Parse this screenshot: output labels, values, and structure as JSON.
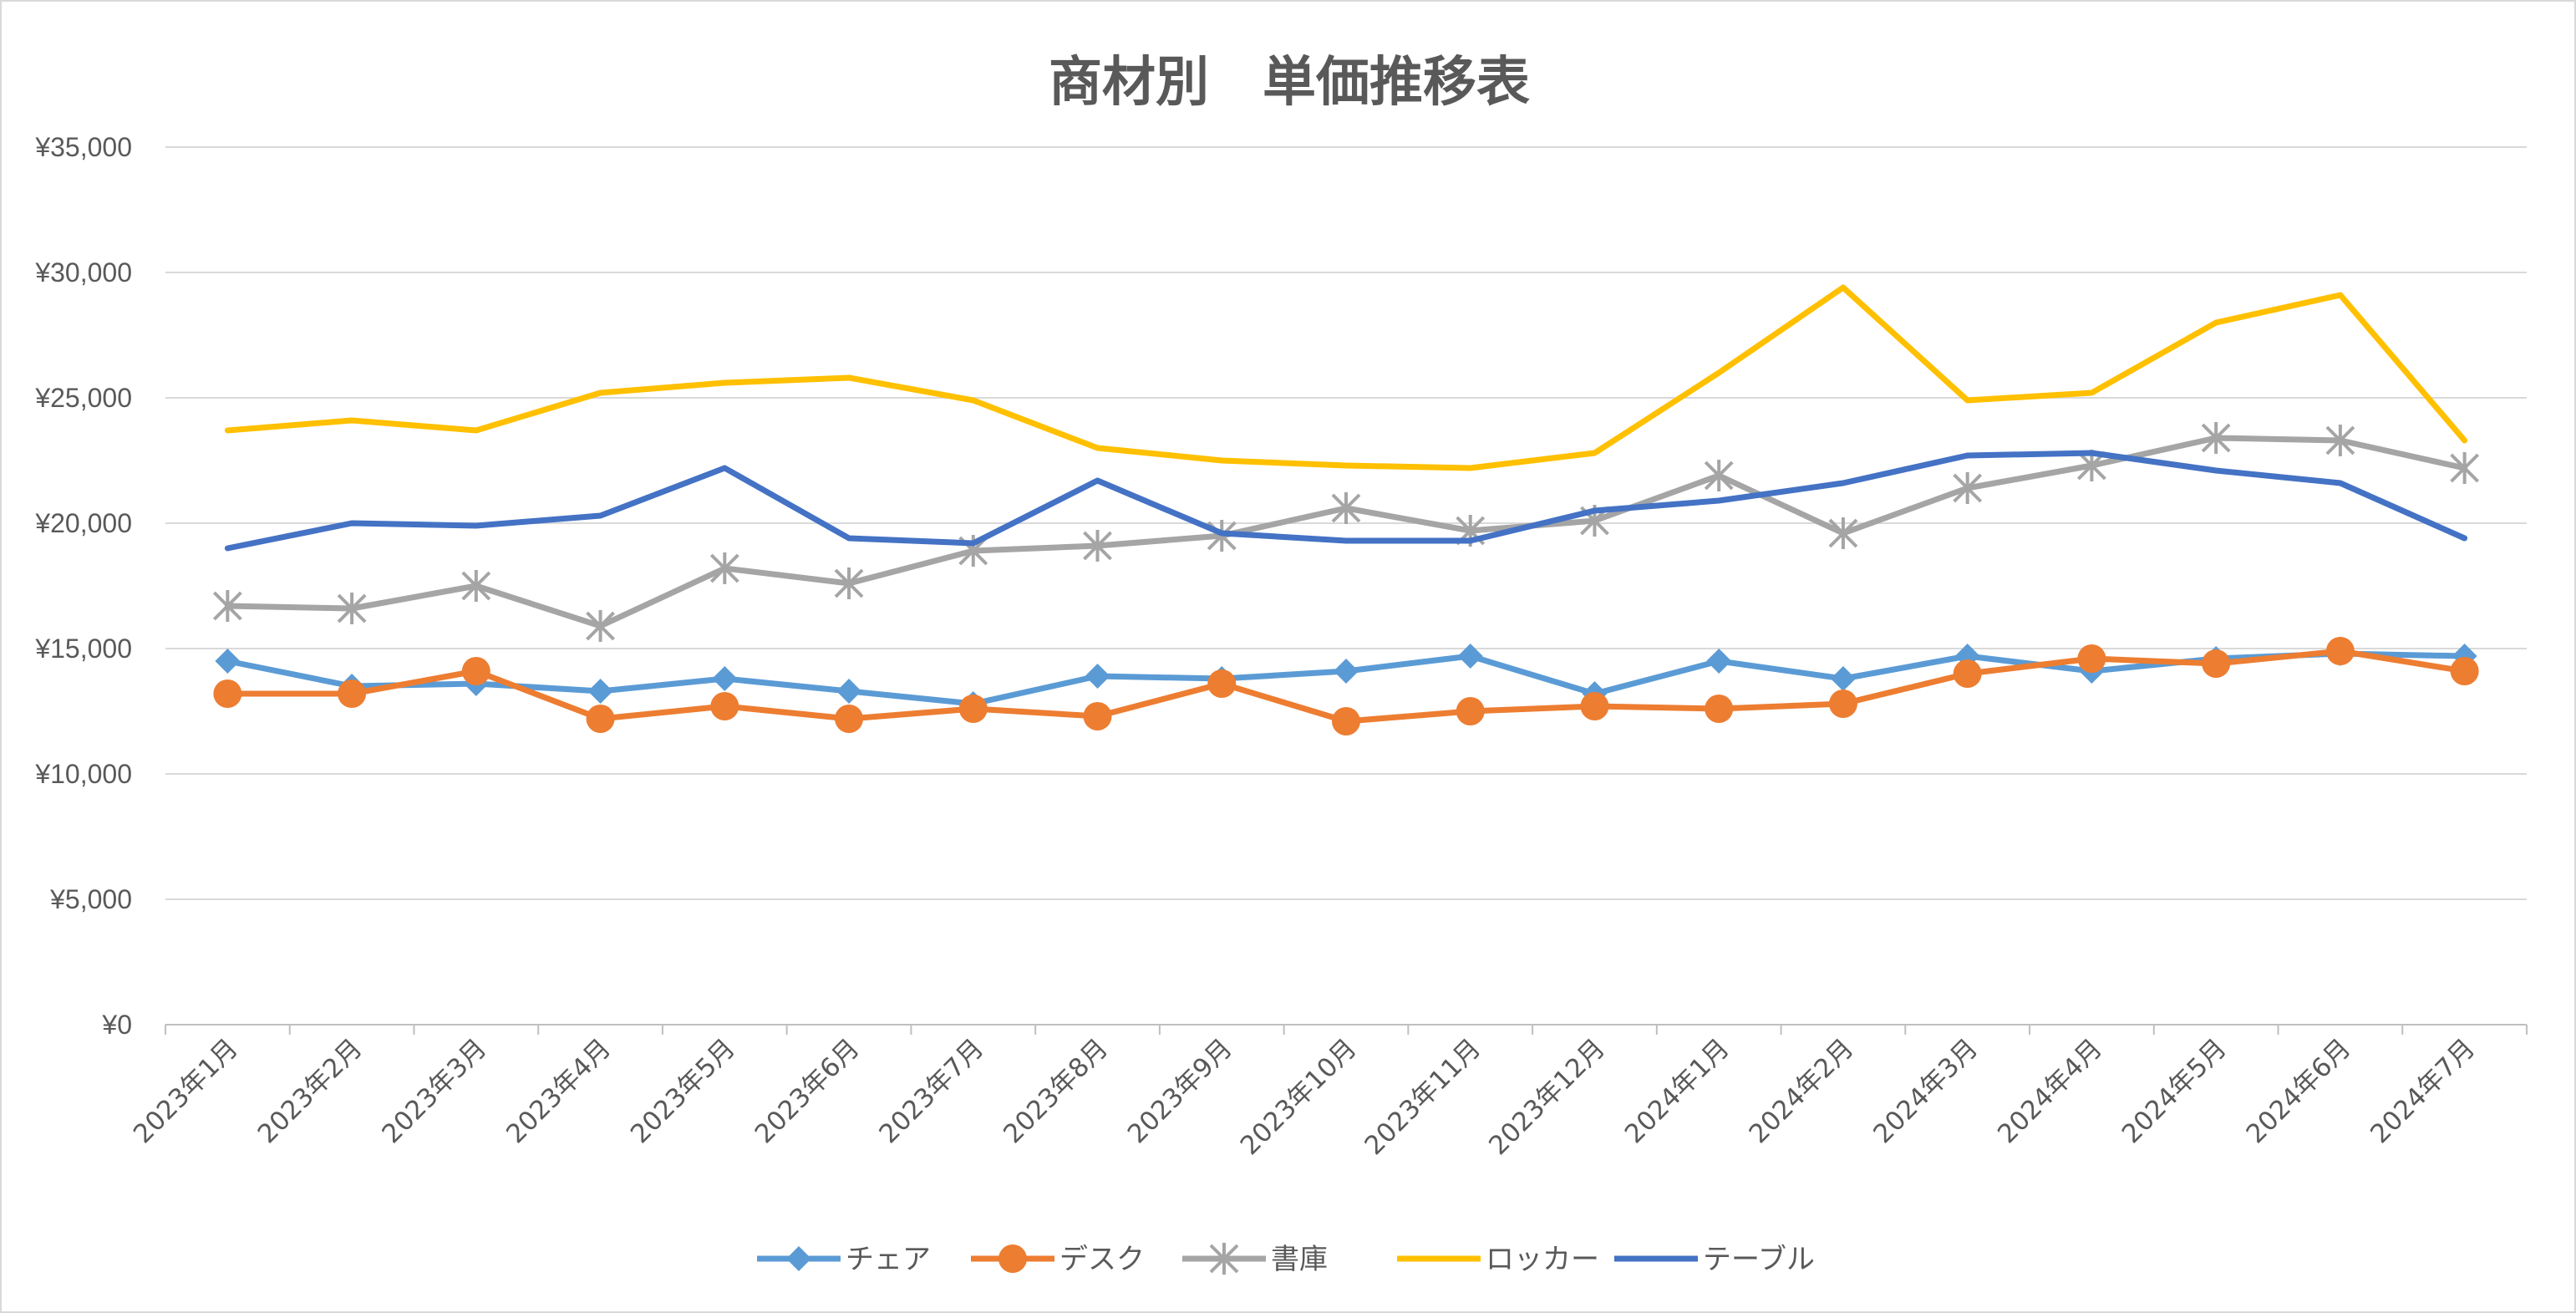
{
  "chart_data": {
    "type": "line",
    "title": "商材別　単価推移表",
    "xlabel": "",
    "ylabel": "",
    "ylim": [
      0,
      35000
    ],
    "yticks": [
      0,
      5000,
      10000,
      15000,
      20000,
      25000,
      30000,
      35000
    ],
    "ytick_labels": [
      "¥0",
      "¥5,000",
      "¥10,000",
      "¥15,000",
      "¥20,000",
      "¥25,000",
      "¥30,000",
      "¥35,000"
    ],
    "grid": true,
    "legend_position": "bottom",
    "categories": [
      "2023年1月",
      "2023年2月",
      "2023年3月",
      "2023年4月",
      "2023年5月",
      "2023年6月",
      "2023年7月",
      "2023年8月",
      "2023年9月",
      "2023年10月",
      "2023年11月",
      "2023年12月",
      "2024年1月",
      "2024年2月",
      "2024年3月",
      "2024年4月",
      "2024年5月",
      "2024年6月",
      "2024年7月"
    ],
    "series": [
      {
        "name": "チェア",
        "color": "#5B9BD5",
        "marker": "diamond",
        "values": [
          14500,
          13500,
          13600,
          13300,
          13800,
          13300,
          12800,
          13900,
          13800,
          14100,
          14700,
          13200,
          14500,
          13800,
          14700,
          14100,
          14600,
          14800,
          14700
        ]
      },
      {
        "name": "デスク",
        "color": "#ED7D31",
        "marker": "circle",
        "values": [
          13200,
          13200,
          14100,
          12200,
          12700,
          12200,
          12600,
          12300,
          13600,
          12100,
          12500,
          12700,
          12600,
          12800,
          14000,
          14600,
          14400,
          14900,
          14100
        ]
      },
      {
        "name": "書庫",
        "color": "#A5A5A5",
        "marker": "star",
        "values": [
          16700,
          16600,
          17500,
          15900,
          18200,
          17600,
          18900,
          19100,
          19500,
          20600,
          19700,
          20100,
          21900,
          19600,
          21400,
          22300,
          23400,
          23300,
          22200
        ]
      },
      {
        "name": "ロッカー",
        "color": "#FFC000",
        "marker": "none",
        "values": [
          23700,
          24100,
          23700,
          25200,
          25600,
          25800,
          24900,
          23000,
          22500,
          22300,
          22200,
          22800,
          26000,
          29400,
          24900,
          25200,
          28000,
          29100,
          23300
        ]
      },
      {
        "name": "テーブル",
        "color": "#4472C4",
        "marker": "none",
        "values": [
          19000,
          20000,
          19900,
          20300,
          22200,
          19400,
          19200,
          21700,
          19600,
          19300,
          19300,
          20500,
          20900,
          21600,
          22700,
          22800,
          22100,
          21600,
          19400
        ]
      }
    ]
  }
}
